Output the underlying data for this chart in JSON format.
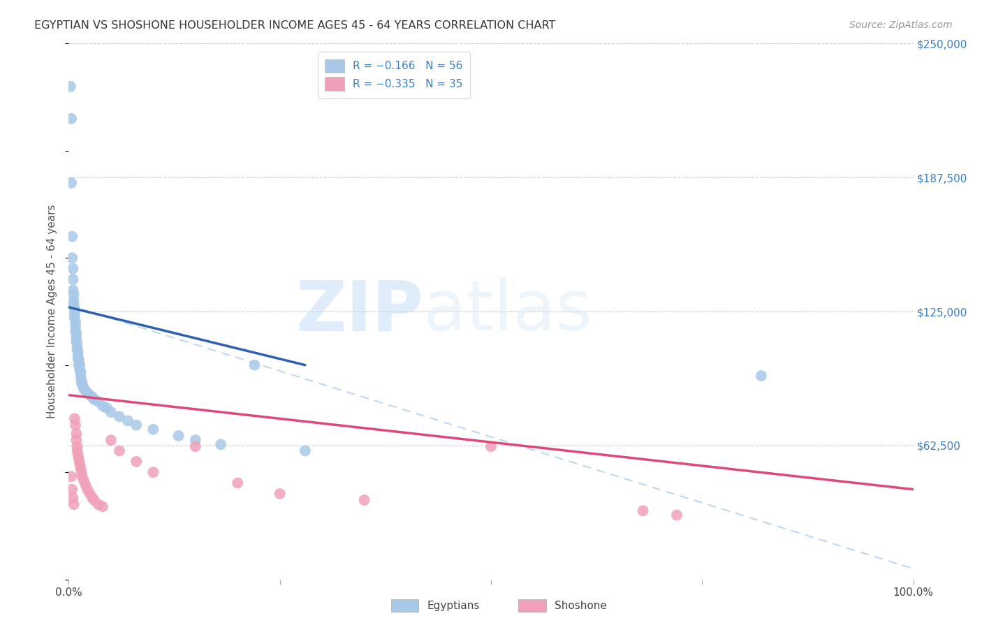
{
  "title": "EGYPTIAN VS SHOSHONE HOUSEHOLDER INCOME AGES 45 - 64 YEARS CORRELATION CHART",
  "source": "Source: ZipAtlas.com",
  "ylabel": "Householder Income Ages 45 - 64 years",
  "xlim": [
    0,
    1.0
  ],
  "ylim": [
    0,
    250000
  ],
  "ytick_vals": [
    62500,
    125000,
    187500,
    250000
  ],
  "ytick_labels": [
    "$62,500",
    "$125,000",
    "$187,500",
    "$250,000"
  ],
  "xtick_vals": [
    0.0,
    0.25,
    0.5,
    0.75,
    1.0
  ],
  "xtick_labels": [
    "0.0%",
    "",
    "",
    "",
    "100.0%"
  ],
  "egyptians_color": "#a8c8e8",
  "egyptians_line_color": "#3060b0",
  "shoshone_color": "#f0a0b8",
  "shoshone_line_color": "#e04878",
  "dashed_line_color": "#b8d4ee",
  "grid_color": "#cccccc",
  "background_color": "#ffffff",
  "watermark": "ZIPatlas",
  "legend_label1": "R = −0.166   N = 56",
  "legend_label2": "R = −0.335   N = 35",
  "bottom_label1": "Egyptians",
  "bottom_label2": "Shoshone",
  "eg_x": [
    0.002,
    0.003,
    0.003,
    0.004,
    0.004,
    0.005,
    0.005,
    0.005,
    0.006,
    0.006,
    0.006,
    0.007,
    0.007,
    0.007,
    0.008,
    0.008,
    0.008,
    0.009,
    0.009,
    0.009,
    0.01,
    0.01,
    0.01,
    0.011,
    0.011,
    0.011,
    0.012,
    0.012,
    0.013,
    0.013,
    0.014,
    0.014,
    0.015,
    0.015,
    0.016,
    0.017,
    0.018,
    0.02,
    0.022,
    0.025,
    0.028,
    0.03,
    0.035,
    0.04,
    0.045,
    0.05,
    0.06,
    0.07,
    0.08,
    0.1,
    0.13,
    0.15,
    0.18,
    0.22,
    0.28,
    0.82
  ],
  "eg_y": [
    230000,
    215000,
    185000,
    160000,
    150000,
    145000,
    140000,
    135000,
    133000,
    130000,
    128000,
    126000,
    124000,
    122000,
    120000,
    118000,
    116000,
    115000,
    113000,
    111000,
    110000,
    108000,
    107000,
    106000,
    104000,
    103000,
    102000,
    100000,
    100000,
    98000,
    97000,
    95000,
    93000,
    92000,
    91000,
    90000,
    89000,
    88000,
    87000,
    86000,
    85000,
    84000,
    83000,
    81000,
    80000,
    78000,
    76000,
    74000,
    72000,
    70000,
    67000,
    65000,
    63000,
    100000,
    60000,
    95000
  ],
  "sh_x": [
    0.003,
    0.004,
    0.005,
    0.006,
    0.007,
    0.008,
    0.009,
    0.009,
    0.01,
    0.01,
    0.011,
    0.012,
    0.013,
    0.014,
    0.015,
    0.016,
    0.018,
    0.02,
    0.022,
    0.025,
    0.028,
    0.03,
    0.035,
    0.04,
    0.05,
    0.06,
    0.08,
    0.1,
    0.15,
    0.2,
    0.25,
    0.35,
    0.5,
    0.68,
    0.72
  ],
  "sh_y": [
    48000,
    42000,
    38000,
    35000,
    75000,
    72000,
    68000,
    65000,
    62000,
    60000,
    58000,
    56000,
    54000,
    52000,
    50000,
    48000,
    46000,
    44000,
    42000,
    40000,
    38000,
    37000,
    35000,
    34000,
    65000,
    60000,
    55000,
    50000,
    62000,
    45000,
    40000,
    37000,
    62000,
    32000,
    30000
  ]
}
